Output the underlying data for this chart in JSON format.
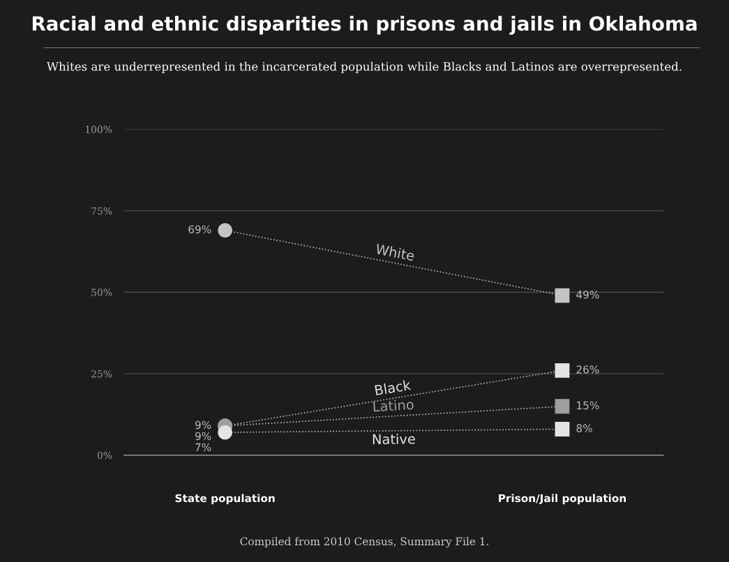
{
  "chart_data": {
    "type": "line",
    "title": "Racial and ethnic disparities in prisons and jails in Oklahoma",
    "subtitle": "Whites are underrepresented in the incarcerated population while Blacks and Latinos are overrepresented.",
    "categories": [
      "State population",
      "Prison/Jail population"
    ],
    "series": [
      {
        "name": "White",
        "color": "#c4c4c4",
        "values": [
          69,
          49
        ],
        "value_labels": [
          "69%",
          "49%"
        ]
      },
      {
        "name": "Black",
        "color": "#e4e4e4",
        "values": [
          9,
          26
        ],
        "value_labels": [
          "9%",
          "26%"
        ]
      },
      {
        "name": "Latino",
        "color": "#9e9e9e",
        "values": [
          9,
          15
        ],
        "value_labels": [
          "9%",
          "15%"
        ]
      },
      {
        "name": "Native",
        "color": "#e4e4e4",
        "values": [
          7,
          8
        ],
        "value_labels": [
          "7%",
          "8%"
        ]
      }
    ],
    "ylim": [
      0,
      100
    ],
    "yticks": [
      {
        "value": 0,
        "label": "0%"
      },
      {
        "value": 25,
        "label": "25%"
      },
      {
        "value": 50,
        "label": "50%"
      },
      {
        "value": 75,
        "label": "75%"
      },
      {
        "value": 100,
        "label": "100%"
      }
    ],
    "grid": "y",
    "marker": [
      "circle",
      "square"
    ],
    "line_style": "dotted",
    "annotations": [
      "Compiled from 2010 Census, Summary File 1."
    ]
  }
}
